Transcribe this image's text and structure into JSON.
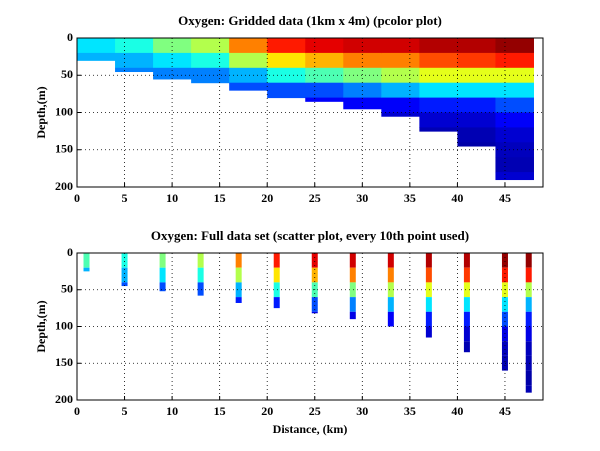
{
  "chart_data": [
    {
      "type": "heatmap",
      "title": "Oxygen: Gridded data (1km x 4m) (pcolor plot)",
      "ylabel": "Depth,(m)",
      "colormap": "jet",
      "y_reversed": true,
      "grid": true,
      "x": [
        2,
        6,
        10,
        14,
        18,
        22,
        26,
        30,
        34,
        38,
        42,
        46
      ],
      "depth": [
        10,
        30,
        50,
        70,
        90,
        110,
        130,
        150,
        170,
        190
      ],
      "bottom_depth": [
        30,
        45,
        55,
        60,
        70,
        80,
        85,
        95,
        105,
        125,
        145,
        190
      ],
      "z": [
        [
          0.35,
          0.3
        ],
        [
          0.4,
          0.3,
          0.25
        ],
        [
          0.5,
          0.35,
          0.25
        ],
        [
          0.55,
          0.4,
          0.25
        ],
        [
          0.75,
          0.55,
          0.3,
          0.2
        ],
        [
          0.85,
          0.65,
          0.4,
          0.2
        ],
        [
          0.9,
          0.7,
          0.45,
          0.2,
          0.12
        ],
        [
          0.92,
          0.75,
          0.5,
          0.25,
          0.12
        ],
        [
          0.92,
          0.75,
          0.55,
          0.3,
          0.12,
          0.08
        ],
        [
          0.95,
          0.8,
          0.6,
          0.35,
          0.15,
          0.08,
          0.05
        ],
        [
          0.95,
          0.82,
          0.6,
          0.35,
          0.15,
          0.08,
          0.05,
          0.04
        ],
        [
          0.98,
          0.85,
          0.6,
          0.35,
          0.2,
          0.12,
          0.08,
          0.06,
          0.05,
          0.08
        ]
      ],
      "xlim": [
        0,
        49
      ],
      "ylim": [
        0,
        200
      ],
      "xticks": [
        0,
        5,
        10,
        15,
        20,
        25,
        30,
        35,
        40,
        45
      ],
      "yticks": [
        0,
        50,
        100,
        150,
        200
      ]
    },
    {
      "type": "scatter",
      "title": "Oxygen: Full data set (scatter plot, every 10th point used)",
      "ylabel": "Depth,(m)",
      "xlabel": "Distance, (km)",
      "colormap": "jet",
      "y_reversed": true,
      "grid": true,
      "x": [
        1,
        5,
        9,
        13,
        17,
        21,
        25,
        29,
        33,
        37,
        41,
        45,
        47.5
      ],
      "depth": [
        10,
        30,
        50,
        70,
        90,
        110,
        130,
        150,
        170,
        190
      ],
      "bottom_depth": [
        25,
        45,
        52,
        58,
        68,
        75,
        82,
        90,
        100,
        115,
        135,
        160,
        190
      ],
      "z": [
        [
          0.45,
          0.3
        ],
        [
          0.4,
          0.3,
          0.2
        ],
        [
          0.5,
          0.35,
          0.2
        ],
        [
          0.55,
          0.4,
          0.2
        ],
        [
          0.75,
          0.55,
          0.3,
          0.15
        ],
        [
          0.85,
          0.65,
          0.4,
          0.15
        ],
        [
          0.9,
          0.7,
          0.45,
          0.2,
          0.1
        ],
        [
          0.92,
          0.75,
          0.5,
          0.25,
          0.1
        ],
        [
          0.92,
          0.75,
          0.55,
          0.3,
          0.12
        ],
        [
          0.95,
          0.8,
          0.6,
          0.35,
          0.15,
          0.08
        ],
        [
          0.95,
          0.82,
          0.6,
          0.35,
          0.15,
          0.08,
          0.05
        ],
        [
          0.98,
          0.85,
          0.6,
          0.35,
          0.2,
          0.1,
          0.06,
          0.05
        ],
        [
          0.98,
          0.85,
          0.55,
          0.3,
          0.15,
          0.1,
          0.06,
          0.05,
          0.04,
          0.05
        ]
      ],
      "xlim": [
        0,
        49
      ],
      "ylim": [
        0,
        200
      ],
      "xticks": [
        0,
        5,
        10,
        15,
        20,
        25,
        30,
        35,
        40,
        45
      ],
      "yticks": [
        0,
        50,
        100,
        150,
        200
      ]
    }
  ]
}
